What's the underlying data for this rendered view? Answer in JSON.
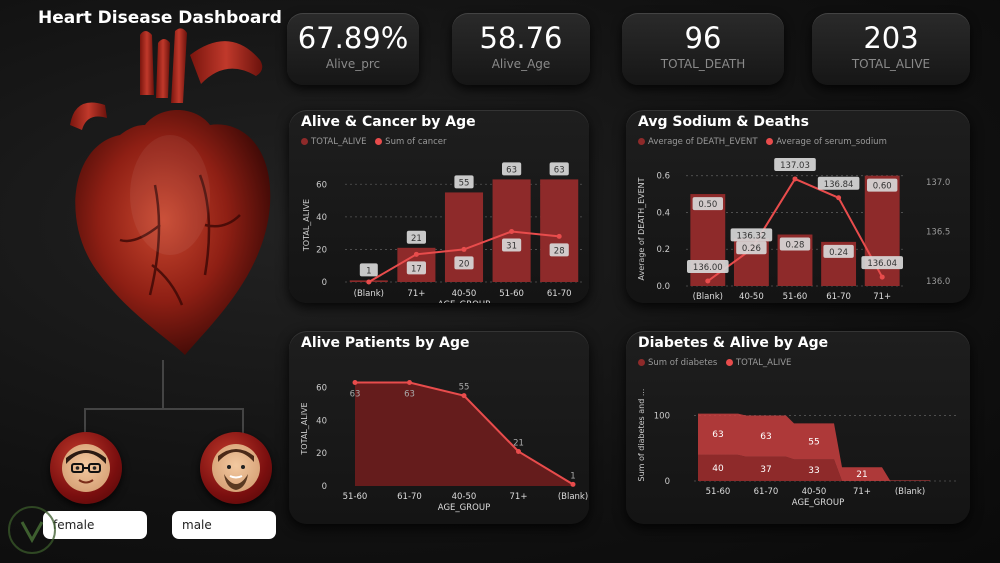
{
  "title": "Heart Disease Dashboard",
  "kpis": [
    {
      "value": "67.89%",
      "label": "Alive_prc"
    },
    {
      "value": "58.76",
      "label": "Alive_Age"
    },
    {
      "value": "96",
      "label": "TOTAL_DEATH"
    },
    {
      "value": "203",
      "label": "TOTAL_ALIVE"
    }
  ],
  "colors": {
    "bar": "#8e2a2a",
    "bar_light": "#c94040",
    "line": "#e84c4c",
    "accent": "#b31b1b"
  },
  "slicers": {
    "female": "female",
    "male": "male"
  },
  "chart_data": [
    {
      "type": "bar",
      "title": "Alive & Cancer by Age",
      "legend": [
        "TOTAL_ALIVE",
        "Sum of cancer"
      ],
      "categories": [
        "(Blank)",
        "71+",
        "40-50",
        "51-60",
        "61-70"
      ],
      "series": [
        {
          "name": "TOTAL_ALIVE",
          "values": [
            1,
            21,
            55,
            63,
            63
          ]
        },
        {
          "name": "Sum of cancer",
          "values": [
            0,
            17,
            20,
            31,
            28
          ]
        }
      ],
      "xlabel": "AGE_GROUP",
      "ylabel": "TOTAL_ALIVE",
      "yticks": [
        "0",
        "20",
        "40",
        "60"
      ],
      "ylim": [
        0,
        70
      ]
    },
    {
      "type": "bar",
      "title": "Avg Sodium & Deaths",
      "legend": [
        "Average of DEATH_EVENT",
        "Average of serum_sodium"
      ],
      "categories": [
        "(Blank)",
        "40-50",
        "51-60",
        "61-70",
        "71+"
      ],
      "series": [
        {
          "name": "Average of DEATH_EVENT",
          "values": [
            0.5,
            0.26,
            0.28,
            0.24,
            0.6
          ]
        },
        {
          "name": "Average of serum_sodium",
          "values": [
            136.0,
            136.32,
            137.03,
            136.84,
            136.04
          ]
        }
      ],
      "bar_labels": [
        "0.50",
        "0.26",
        "0.28",
        "0.24",
        "0.60"
      ],
      "line_labels": [
        "136.00",
        "136.32",
        "137.03",
        "136.84",
        "136.04"
      ],
      "xlabel": "AGE_GROUP",
      "ylabel": "Average of DEATH_EVENT",
      "yticks": [
        "0.0",
        "0.2",
        "0.4",
        "0.6"
      ],
      "y2ticks": [
        "136.0",
        "136.5",
        "137.0"
      ],
      "ylim": [
        0,
        0.62
      ],
      "y2lim": [
        135.95,
        137.1
      ]
    },
    {
      "type": "area",
      "title": "Alive Patients by Age",
      "categories": [
        "51-60",
        "61-70",
        "40-50",
        "71+",
        "(Blank)"
      ],
      "values": [
        63,
        63,
        55,
        21,
        1
      ],
      "xlabel": "AGE_GROUP",
      "ylabel": "TOTAL_ALIVE",
      "yticks": [
        "0",
        "20",
        "40",
        "60"
      ],
      "ylim": [
        0,
        70
      ]
    },
    {
      "type": "area",
      "title": "Diabetes & Alive by Age",
      "legend": [
        "Sum of diabetes",
        "TOTAL_ALIVE"
      ],
      "categories": [
        "51-60",
        "61-70",
        "40-50",
        "71+",
        "(Blank)"
      ],
      "series": [
        {
          "name": "Sum of diabetes",
          "values": [
            40,
            37,
            33,
            0,
            0
          ]
        },
        {
          "name": "TOTAL_ALIVE",
          "values": [
            63,
            63,
            55,
            21,
            1
          ]
        }
      ],
      "labels_bottom": [
        "40",
        "37",
        "33",
        "",
        ""
      ],
      "labels_top": [
        "63",
        "63",
        "55",
        "21",
        ""
      ],
      "xlabel": "AGE_GROUP",
      "ylabel": "Sum of diabetes and ...",
      "yticks": [
        "0",
        "100"
      ],
      "ylim": [
        0,
        110
      ]
    }
  ]
}
